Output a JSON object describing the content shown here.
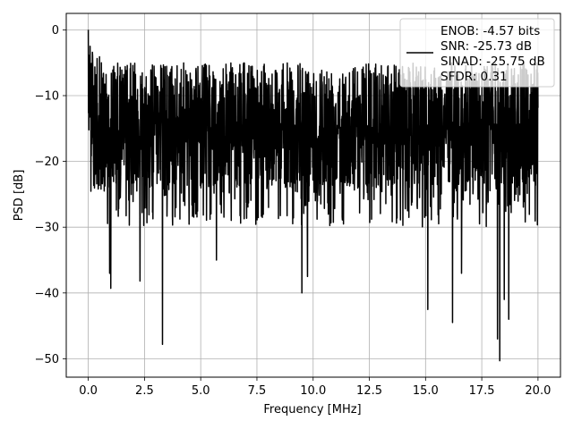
{
  "chart_data": {
    "type": "line",
    "title": "",
    "xlabel": "Frequency [MHz]",
    "ylabel": "PSD [dB]",
    "xlim": [
      -0.98,
      21.0
    ],
    "ylim": [
      -52.8,
      2.5
    ],
    "x_ticks": [
      0.0,
      2.5,
      5.0,
      7.5,
      10.0,
      12.5,
      15.0,
      17.5,
      20.0
    ],
    "x_tick_labels": [
      "0.0",
      "2.5",
      "5.0",
      "7.5",
      "10.0",
      "12.5",
      "15.0",
      "17.5",
      "20.0"
    ],
    "y_ticks": [
      0,
      -10,
      -20,
      -30,
      -40,
      -50
    ],
    "y_tick_labels": [
      "0",
      "−10",
      "−20",
      "−30",
      "−40",
      "−50"
    ],
    "grid": true,
    "legend": {
      "placement": "top-right",
      "entries": [
        "ENOB: -4.57 bits",
        "SNR: -25.73 dB",
        "SINAD: -25.75 dB",
        "SFDR: 0.31"
      ]
    },
    "series": [
      {
        "color": "#000000",
        "x_start": 0.0,
        "x_end": 20.0,
        "typical_range": [
          -28,
          -5
        ],
        "notable_points": [
          {
            "x": 0.0,
            "y": 0.0
          },
          {
            "x": 0.08,
            "y": -2.5
          },
          {
            "x": 0.2,
            "y": -6.0
          },
          {
            "x": 1.0,
            "y": -39.3
          },
          {
            "x": 0.95,
            "y": -37.0
          },
          {
            "x": 2.3,
            "y": -38.2
          },
          {
            "x": 3.3,
            "y": -47.8
          },
          {
            "x": 5.7,
            "y": -35.0
          },
          {
            "x": 9.5,
            "y": -40.0
          },
          {
            "x": 9.75,
            "y": -37.5
          },
          {
            "x": 15.1,
            "y": -42.5
          },
          {
            "x": 16.2,
            "y": -44.5
          },
          {
            "x": 16.6,
            "y": -37.0
          },
          {
            "x": 18.2,
            "y": -47.0
          },
          {
            "x": 18.3,
            "y": -50.3
          },
          {
            "x": 18.7,
            "y": -44.0
          },
          {
            "x": 18.5,
            "y": -41.0
          }
        ]
      }
    ]
  }
}
